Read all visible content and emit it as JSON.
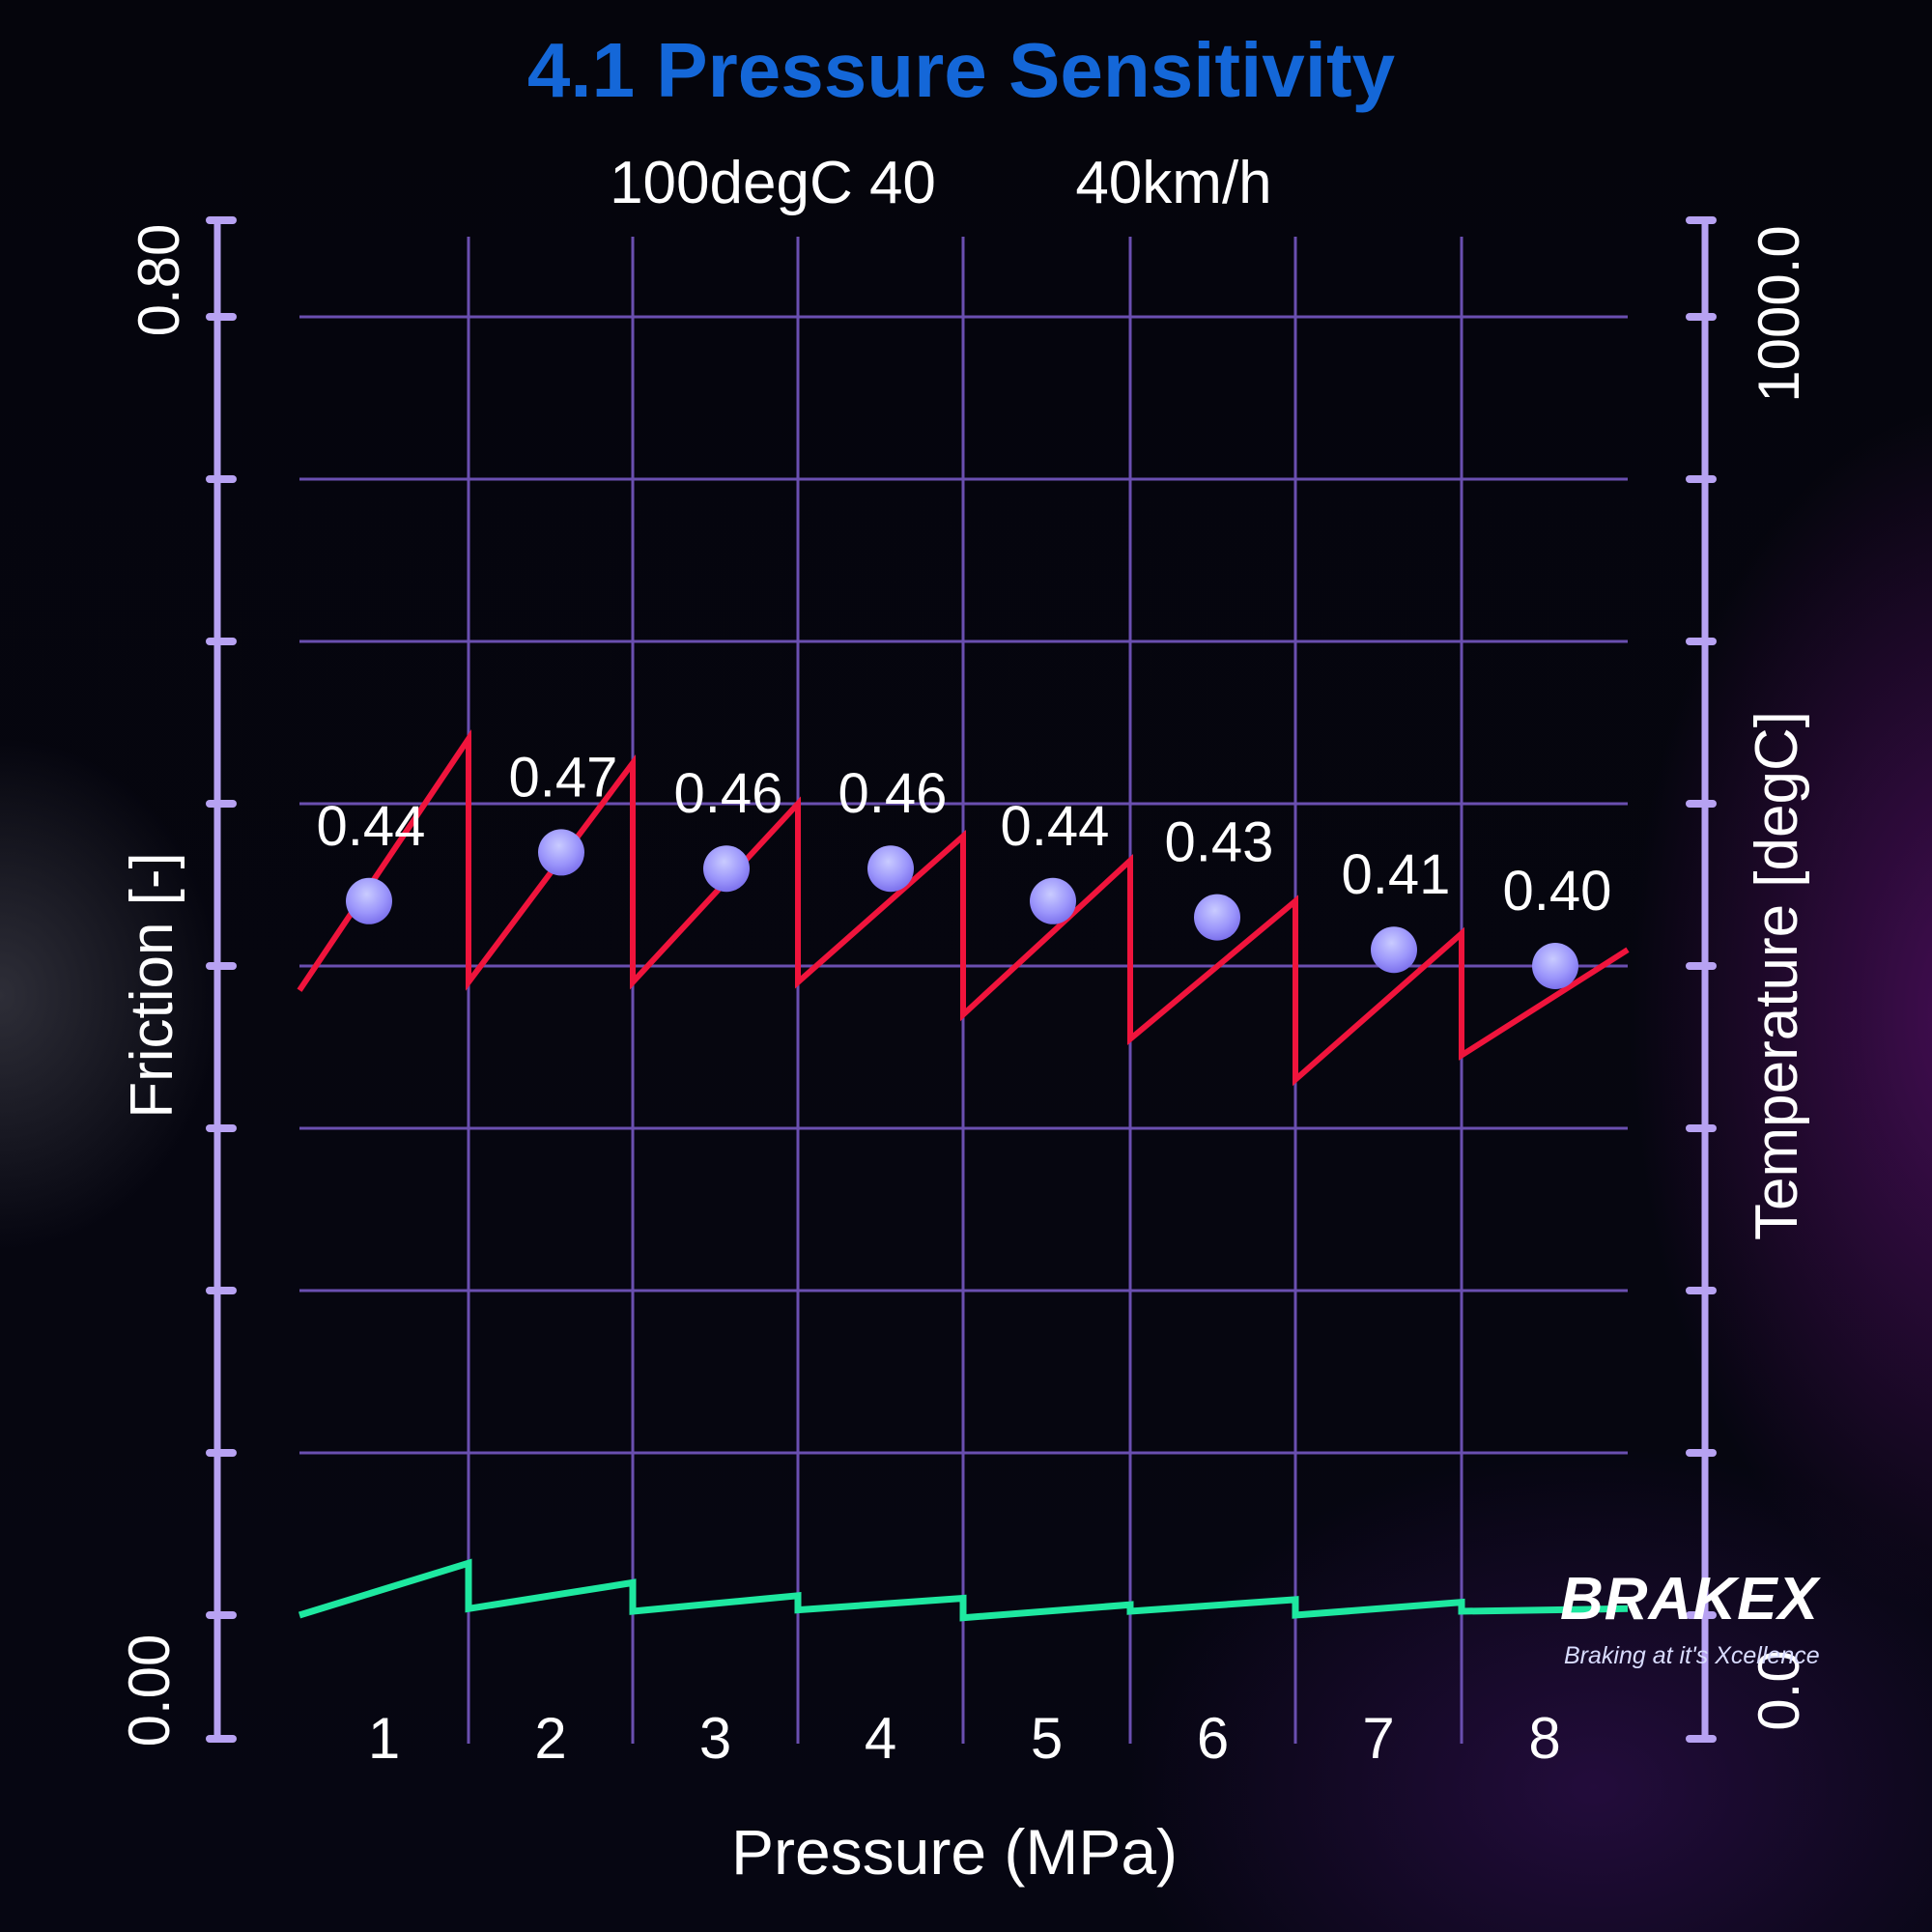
{
  "brand": {
    "name": "BRAKEX",
    "tagline": "Braking at it's Xcellence"
  },
  "colors": {
    "title": "#1467d8",
    "grid": "#6a4fb0",
    "axis": "#b7a2f2",
    "friction_line": "#f0143c",
    "temperature_line": "#1ee8a0",
    "marker": "#8b85f5"
  },
  "chart_data": {
    "type": "line",
    "title": "4.1 Pressure Sensitivity",
    "subtitle": [
      "100degC 40",
      "40km/h"
    ],
    "xlabel": "Pressure (MPa)",
    "ylabel": "Friction [-]",
    "y2label": "Temperature [degC]",
    "categories": [
      "1",
      "2",
      "3",
      "4",
      "5",
      "6",
      "7",
      "8"
    ],
    "ylim": [
      0.0,
      0.8
    ],
    "y2lim": [
      0.0,
      1000.0
    ],
    "ytick_labels": [
      "0.00",
      "0.80"
    ],
    "y2tick_labels": [
      "0.0",
      "1000.0"
    ],
    "grid": true,
    "series": [
      {
        "name": "Friction",
        "axis": "left",
        "values": [
          0.44,
          0.47,
          0.46,
          0.46,
          0.44,
          0.43,
          0.41,
          0.4
        ],
        "labels": [
          "0.44",
          "0.47",
          "0.46",
          "0.46",
          "0.44",
          "0.43",
          "0.41",
          "0.40"
        ],
        "segments": [
          {
            "start": 0.385,
            "end": 0.54
          },
          {
            "start": 0.39,
            "end": 0.525
          },
          {
            "start": 0.39,
            "end": 0.5
          },
          {
            "start": 0.39,
            "end": 0.48
          },
          {
            "start": 0.37,
            "end": 0.465
          },
          {
            "start": 0.355,
            "end": 0.44
          },
          {
            "start": 0.33,
            "end": 0.42
          },
          {
            "start": 0.345,
            "end": 0.41
          }
        ]
      },
      {
        "name": "Temperature",
        "axis": "right",
        "segments": [
          {
            "start": 0.0,
            "end": 40.0
          },
          {
            "start": 5.0,
            "end": 25.0
          },
          {
            "start": 3.0,
            "end": 15.0
          },
          {
            "start": 4.0,
            "end": 13.0
          },
          {
            "start": -2.0,
            "end": 8.0
          },
          {
            "start": 3.0,
            "end": 12.0
          },
          {
            "start": 0.0,
            "end": 10.0
          },
          {
            "start": 3.0,
            "end": 5.0
          }
        ]
      }
    ]
  }
}
